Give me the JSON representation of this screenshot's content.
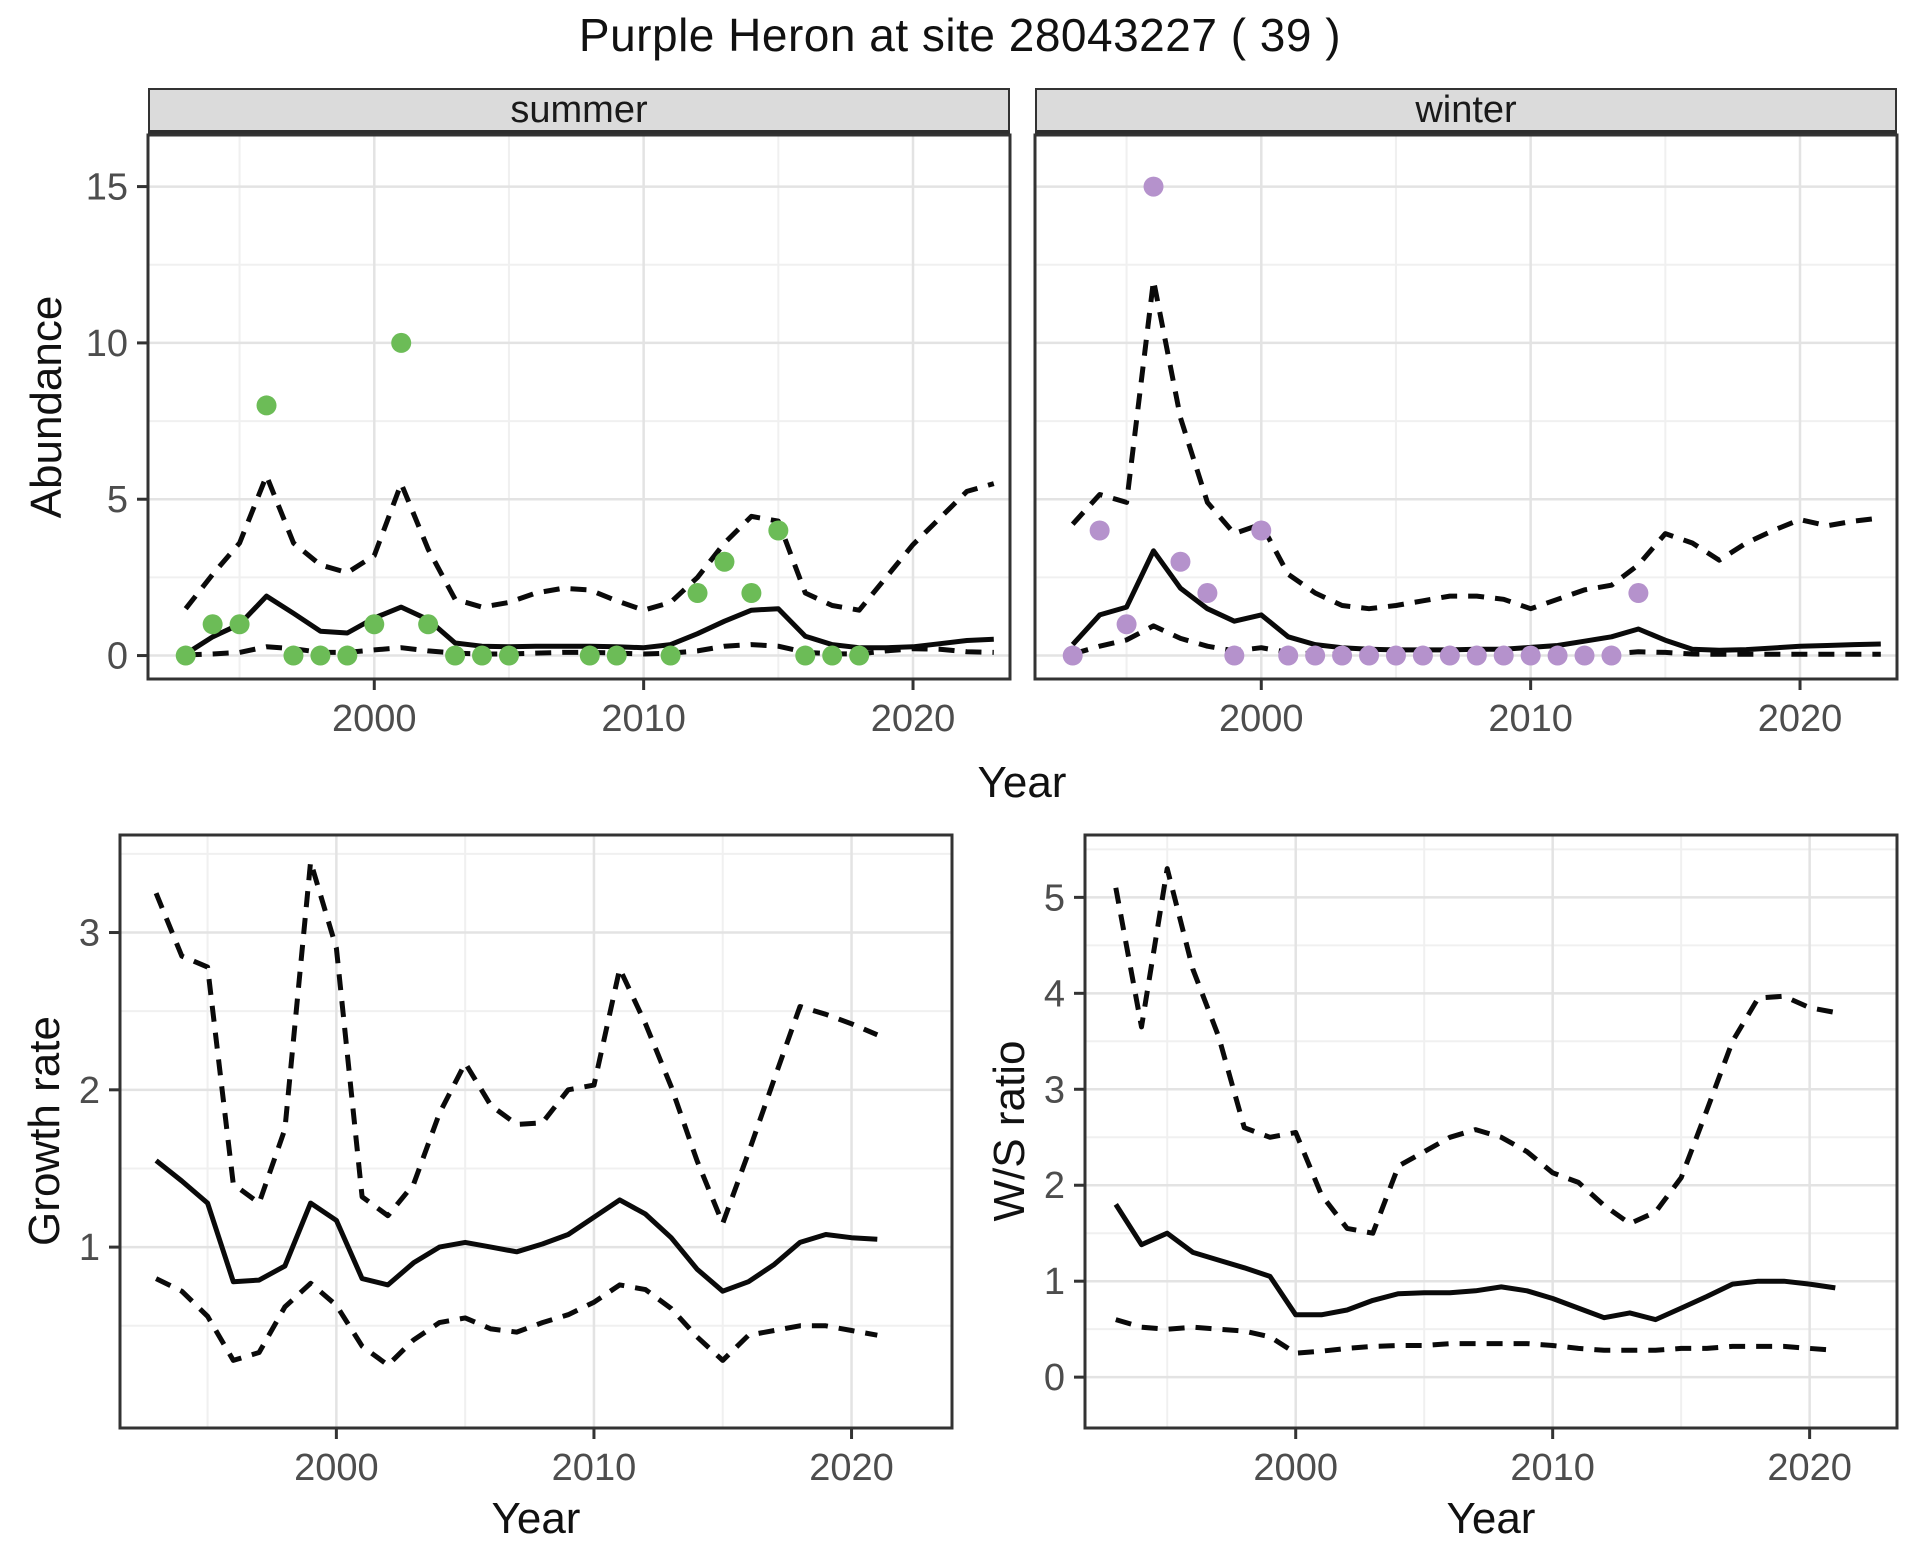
{
  "title": "Purple Heron at site 28043227 ( 39 )",
  "colors": {
    "summer_points": "#6CBC57",
    "winter_points": "#B592CC",
    "line": "#0a0a0a",
    "grid_major": "#E3E3E3",
    "grid_minor": "#F0F0F0",
    "tick_text": "#4D4D4D",
    "panel_border": "#333333",
    "strip_background": "#DBDBDB"
  },
  "chart_data": [
    {
      "type": "scatter",
      "panel": "abundance-summer",
      "facet_label": "summer",
      "xlabel": "Year",
      "ylabel": "Abundance",
      "x_ticks": [
        2000,
        2010,
        2020
      ],
      "x_minor": [
        1995,
        2005,
        2015
      ],
      "y_ticks": [
        0,
        5,
        10,
        15
      ],
      "y_minor": [
        2.5,
        7.5,
        12.5
      ],
      "xlim": [
        1991.6,
        2023.6
      ],
      "ylim": [
        -0.75,
        16.65
      ],
      "show_y_tick_labels": true,
      "point_color": "#6CBC57",
      "points": {
        "years": [
          1993,
          1994,
          1995,
          1996,
          1997,
          1998,
          1999,
          2000,
          2001,
          2002,
          2003,
          2004,
          2005,
          2008,
          2009,
          2011,
          2012,
          2013,
          2014,
          2015,
          2016,
          2017,
          2018
        ],
        "values": [
          0,
          1,
          1,
          8,
          0,
          0,
          0,
          1,
          10,
          1,
          0,
          0,
          0,
          0,
          0,
          0,
          2,
          3,
          2,
          4,
          0,
          0,
          0
        ]
      },
      "median": {
        "years": [
          1993,
          1994,
          1995,
          1996,
          1997,
          1998,
          1999,
          2000,
          2001,
          2002,
          2003,
          2004,
          2005,
          2006,
          2007,
          2008,
          2009,
          2010,
          2011,
          2012,
          2013,
          2014,
          2015,
          2016,
          2017,
          2018,
          2019,
          2020,
          2021,
          2022,
          2023
        ],
        "values": [
          0.05,
          0.6,
          1.0,
          1.9,
          1.35,
          0.78,
          0.72,
          1.2,
          1.55,
          1.15,
          0.4,
          0.3,
          0.28,
          0.3,
          0.3,
          0.3,
          0.28,
          0.25,
          0.35,
          0.7,
          1.1,
          1.45,
          1.5,
          0.62,
          0.35,
          0.25,
          0.25,
          0.28,
          0.38,
          0.48,
          0.52
        ]
      },
      "upper": {
        "years": [
          1993,
          1994,
          1995,
          1996,
          1997,
          1998,
          1999,
          2000,
          2001,
          2002,
          2003,
          2004,
          2005,
          2006,
          2007,
          2008,
          2009,
          2010,
          2011,
          2012,
          2013,
          2014,
          2015,
          2016,
          2017,
          2018,
          2019,
          2020,
          2021,
          2022,
          2023
        ],
        "values": [
          1.5,
          2.6,
          3.6,
          5.75,
          3.6,
          2.9,
          2.65,
          3.2,
          5.5,
          3.4,
          1.8,
          1.55,
          1.7,
          2.0,
          2.15,
          2.1,
          1.75,
          1.45,
          1.7,
          2.5,
          3.6,
          4.45,
          4.3,
          2.0,
          1.6,
          1.45,
          2.5,
          3.55,
          4.4,
          5.25,
          5.5
        ]
      },
      "lower": {
        "years": [
          1993,
          1994,
          1995,
          1996,
          1997,
          1998,
          1999,
          2000,
          2001,
          2002,
          2003,
          2004,
          2005,
          2006,
          2007,
          2008,
          2009,
          2010,
          2011,
          2012,
          2013,
          2014,
          2015,
          2016,
          2017,
          2018,
          2019,
          2020,
          2021,
          2022,
          2023
        ],
        "values": [
          0.02,
          0.05,
          0.1,
          0.28,
          0.22,
          0.1,
          0.1,
          0.18,
          0.25,
          0.15,
          0.08,
          0.05,
          0.05,
          0.08,
          0.1,
          0.1,
          0.08,
          0.05,
          0.08,
          0.15,
          0.3,
          0.35,
          0.3,
          0.1,
          0.06,
          0.05,
          0.15,
          0.22,
          0.2,
          0.12,
          0.1
        ]
      }
    },
    {
      "type": "scatter",
      "panel": "abundance-winter",
      "facet_label": "winter",
      "xlabel": "Year",
      "ylabel": "Abundance",
      "x_ticks": [
        2000,
        2010,
        2020
      ],
      "x_minor": [
        1995,
        2005,
        2015
      ],
      "y_ticks": [
        0,
        5,
        10,
        15
      ],
      "y_minor": [
        2.5,
        7.5,
        12.5
      ],
      "xlim": [
        1991.6,
        2023.6
      ],
      "ylim": [
        -0.75,
        16.65
      ],
      "show_y_tick_labels": false,
      "point_color": "#B592CC",
      "points": {
        "years": [
          1993,
          1994,
          1995,
          1996,
          1997,
          1998,
          1999,
          2000,
          2001,
          2002,
          2003,
          2004,
          2005,
          2006,
          2007,
          2008,
          2009,
          2010,
          2011,
          2012,
          2013,
          2014
        ],
        "values": [
          0,
          4,
          1,
          15,
          3,
          2,
          0,
          4,
          0,
          0,
          0,
          0,
          0,
          0,
          0,
          0,
          0,
          0,
          0,
          0,
          0,
          2
        ]
      },
      "median": {
        "years": [
          1993,
          1994,
          1995,
          1996,
          1997,
          1998,
          1999,
          2000,
          2001,
          2002,
          2003,
          2004,
          2005,
          2006,
          2007,
          2008,
          2009,
          2010,
          2011,
          2012,
          2013,
          2014,
          2015,
          2016,
          2017,
          2018,
          2019,
          2020,
          2021,
          2022,
          2023
        ],
        "values": [
          0.35,
          1.3,
          1.55,
          3.35,
          2.15,
          1.5,
          1.1,
          1.3,
          0.6,
          0.35,
          0.25,
          0.2,
          0.18,
          0.18,
          0.18,
          0.2,
          0.2,
          0.26,
          0.32,
          0.46,
          0.6,
          0.85,
          0.49,
          0.2,
          0.17,
          0.19,
          0.24,
          0.3,
          0.32,
          0.35,
          0.37
        ]
      },
      "upper": {
        "years": [
          1993,
          1994,
          1995,
          1996,
          1997,
          1998,
          1999,
          2000,
          2001,
          2002,
          2003,
          2004,
          2005,
          2006,
          2007,
          2008,
          2009,
          2010,
          2011,
          2012,
          2013,
          2014,
          2015,
          2016,
          2017,
          2018,
          2019,
          2020,
          2021,
          2022,
          2023
        ],
        "values": [
          4.2,
          5.15,
          4.9,
          12.0,
          7.6,
          4.9,
          3.9,
          4.2,
          2.6,
          2.0,
          1.6,
          1.5,
          1.6,
          1.75,
          1.9,
          1.9,
          1.8,
          1.5,
          1.8,
          2.1,
          2.25,
          2.9,
          3.9,
          3.6,
          3.05,
          3.6,
          4.0,
          4.35,
          4.15,
          4.3,
          4.4
        ]
      },
      "lower": {
        "years": [
          1993,
          1994,
          1995,
          1996,
          1997,
          1998,
          1999,
          2000,
          2001,
          2002,
          2003,
          2004,
          2005,
          2006,
          2007,
          2008,
          2009,
          2010,
          2011,
          2012,
          2013,
          2014,
          2015,
          2016,
          2017,
          2018,
          2019,
          2020,
          2021,
          2022,
          2023
        ],
        "values": [
          0.05,
          0.3,
          0.5,
          0.95,
          0.55,
          0.3,
          0.15,
          0.25,
          0.1,
          0.05,
          0.04,
          0.04,
          0.04,
          0.04,
          0.04,
          0.04,
          0.04,
          0.03,
          0.03,
          0.03,
          0.05,
          0.12,
          0.1,
          0.05,
          0.04,
          0.04,
          0.04,
          0.04,
          0.04,
          0.04,
          0.04
        ]
      }
    },
    {
      "type": "line",
      "panel": "growth-rate",
      "facet_label": "",
      "xlabel": "Year",
      "ylabel": "Growth rate",
      "x_ticks": [
        2000,
        2010,
        2020
      ],
      "x_minor": [
        1995,
        2005,
        2015
      ],
      "y_ticks": [
        1,
        2,
        3
      ],
      "y_minor": [
        0.5,
        1.5,
        2.5,
        3.5
      ],
      "xlim": [
        1991.6,
        2023.9
      ],
      "ylim": [
        -0.15,
        3.62
      ],
      "show_y_tick_labels": true,
      "point_color": null,
      "points": {
        "years": [],
        "values": []
      },
      "median": {
        "years": [
          1993,
          1994,
          1995,
          1996,
          1997,
          1998,
          1999,
          2000,
          2001,
          2002,
          2003,
          2004,
          2005,
          2006,
          2007,
          2008,
          2009,
          2010,
          2011,
          2012,
          2013,
          2014,
          2015,
          2016,
          2017,
          2018,
          2019,
          2020,
          2021
        ],
        "values": [
          1.55,
          1.42,
          1.28,
          0.78,
          0.79,
          0.88,
          1.28,
          1.17,
          0.8,
          0.76,
          0.9,
          1.0,
          1.03,
          1.0,
          0.97,
          1.02,
          1.08,
          1.19,
          1.3,
          1.21,
          1.06,
          0.86,
          0.72,
          0.78,
          0.89,
          1.03,
          1.08,
          1.06,
          1.05
        ]
      },
      "upper": {
        "years": [
          1993,
          1994,
          1995,
          1996,
          1997,
          1998,
          1999,
          2000,
          2001,
          2002,
          2003,
          2004,
          2005,
          2006,
          2007,
          2008,
          2009,
          2010,
          2011,
          2012,
          2013,
          2014,
          2015,
          2016,
          2017,
          2018,
          2019,
          2020,
          2021
        ],
        "values": [
          3.25,
          2.85,
          2.78,
          1.4,
          1.28,
          1.75,
          3.45,
          2.9,
          1.32,
          1.2,
          1.4,
          1.85,
          2.17,
          1.9,
          1.78,
          1.79,
          2.0,
          2.03,
          2.77,
          2.42,
          2.02,
          1.55,
          1.15,
          1.6,
          2.07,
          2.53,
          2.48,
          2.42,
          2.35
        ]
      },
      "lower": {
        "years": [
          1993,
          1994,
          1995,
          1996,
          1997,
          1998,
          1999,
          2000,
          2001,
          2002,
          2003,
          2004,
          2005,
          2006,
          2007,
          2008,
          2009,
          2010,
          2011,
          2012,
          2013,
          2014,
          2015,
          2016,
          2017,
          2018,
          2019,
          2020,
          2021
        ],
        "values": [
          0.8,
          0.72,
          0.56,
          0.28,
          0.33,
          0.62,
          0.77,
          0.63,
          0.37,
          0.25,
          0.41,
          0.52,
          0.55,
          0.48,
          0.46,
          0.52,
          0.57,
          0.65,
          0.76,
          0.73,
          0.61,
          0.43,
          0.28,
          0.44,
          0.47,
          0.5,
          0.5,
          0.47,
          0.44
        ]
      }
    },
    {
      "type": "line",
      "panel": "ws-ratio",
      "facet_label": "",
      "xlabel": "Year",
      "ylabel": "W/S ratio",
      "x_ticks": [
        2000,
        2010,
        2020
      ],
      "x_minor": [
        1995,
        2005,
        2015
      ],
      "y_ticks": [
        0,
        1,
        2,
        3,
        4,
        5
      ],
      "y_minor": [
        0.5,
        1.5,
        2.5,
        3.5,
        4.5,
        5.5
      ],
      "xlim": [
        1991.8,
        2023.4
      ],
      "ylim": [
        -0.53,
        5.65
      ],
      "show_y_tick_labels": true,
      "point_color": null,
      "points": {
        "years": [],
        "values": []
      },
      "median": {
        "years": [
          1993,
          1994,
          1995,
          1996,
          1997,
          1998,
          1999,
          2000,
          2001,
          2002,
          2003,
          2004,
          2005,
          2006,
          2007,
          2008,
          2009,
          2010,
          2011,
          2012,
          2013,
          2014,
          2015,
          2016,
          2017,
          2018,
          2019,
          2020,
          2021
        ],
        "values": [
          1.8,
          1.38,
          1.5,
          1.3,
          1.22,
          1.14,
          1.05,
          0.65,
          0.65,
          0.7,
          0.8,
          0.87,
          0.88,
          0.88,
          0.9,
          0.94,
          0.9,
          0.82,
          0.72,
          0.62,
          0.67,
          0.6,
          0.72,
          0.84,
          0.97,
          1.0,
          1.0,
          0.97,
          0.93
        ]
      },
      "upper": {
        "years": [
          1993,
          1994,
          1995,
          1996,
          1997,
          1998,
          1999,
          2000,
          2001,
          2002,
          2003,
          2004,
          2005,
          2006,
          2007,
          2008,
          2009,
          2010,
          2011,
          2012,
          2013,
          2014,
          2015,
          2016,
          2017,
          2018,
          2019,
          2020,
          2021
        ],
        "values": [
          5.1,
          3.65,
          5.3,
          4.25,
          3.55,
          2.6,
          2.5,
          2.55,
          1.9,
          1.55,
          1.5,
          2.2,
          2.35,
          2.5,
          2.58,
          2.5,
          2.35,
          2.13,
          2.03,
          1.79,
          1.6,
          1.72,
          2.08,
          2.78,
          3.5,
          3.95,
          3.97,
          3.85,
          3.8
        ]
      },
      "lower": {
        "years": [
          1993,
          1994,
          1995,
          1996,
          1997,
          1998,
          1999,
          2000,
          2001,
          2002,
          2003,
          2004,
          2005,
          2006,
          2007,
          2008,
          2009,
          2010,
          2011,
          2012,
          2013,
          2014,
          2015,
          2016,
          2017,
          2018,
          2019,
          2020,
          2021
        ],
        "values": [
          0.6,
          0.52,
          0.5,
          0.52,
          0.5,
          0.48,
          0.42,
          0.25,
          0.27,
          0.3,
          0.32,
          0.33,
          0.33,
          0.35,
          0.35,
          0.35,
          0.35,
          0.33,
          0.3,
          0.28,
          0.28,
          0.28,
          0.3,
          0.3,
          0.32,
          0.32,
          0.32,
          0.3,
          0.28
        ]
      }
    }
  ]
}
